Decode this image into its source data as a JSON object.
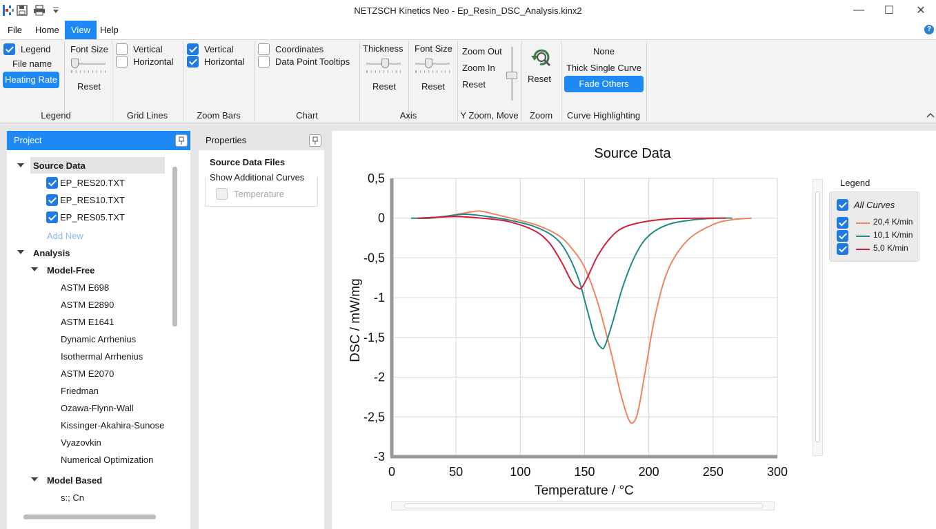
{
  "window": {
    "title": "NETZSCH Kinetics Neo - Ep_Resin_DSC_Analysis.kinx2",
    "minimize_glyph": "—",
    "maximize_glyph": "☐",
    "close_glyph": "✕"
  },
  "menu": {
    "items": [
      "File",
      "Home",
      "View",
      "Help"
    ],
    "active": "View",
    "help_glyph": "?"
  },
  "ribbon": {
    "legend_group": {
      "label": "Legend",
      "legend_checkbox": "Legend",
      "legend_checked": true,
      "file_name": "File name",
      "heating_rate": "Heating Rate",
      "font_size": "Font Size",
      "reset": "Reset"
    },
    "grid_group": {
      "label": "Grid Lines",
      "vertical": "Vertical",
      "horizontal": "Horizontal",
      "vertical_checked": false,
      "horizontal_checked": false
    },
    "zoom_bars_group": {
      "label": "Zoom Bars",
      "vertical": "Vertical",
      "horizontal": "Horizontal",
      "vertical_checked": true,
      "horizontal_checked": true
    },
    "chart_group": {
      "label": "Chart",
      "coordinates": "Coordinates",
      "tooltips": "Data Point Tooltips"
    },
    "axis_group": {
      "label": "Axis",
      "thickness": "Thickness",
      "font_size": "Font Size",
      "reset1": "Reset",
      "reset2": "Reset"
    },
    "yzoom_group": {
      "label": "Y Zoom, Move",
      "zoom_out": "Zoom Out",
      "zoom_in": "Zoom In",
      "reset": "Reset"
    },
    "zoom_group": {
      "label": "Zoom",
      "reset": "Reset"
    },
    "highlight_group": {
      "label": "Curve Highlighting",
      "none": "None",
      "thick": "Thick Single Curve",
      "fade": "Fade Others"
    }
  },
  "project": {
    "title": "Project",
    "source_data": "Source Data",
    "files": [
      {
        "name": "EP_RES20.TXT",
        "checked": true
      },
      {
        "name": "EP_RES10.TXT",
        "checked": true
      },
      {
        "name": "EP_RES05.TXT",
        "checked": true
      }
    ],
    "add_new": "Add New",
    "analysis": "Analysis",
    "model_free": "Model-Free",
    "methods": [
      "ASTM E698",
      "ASTM E2890",
      "ASTM E1641",
      "Dynamic Arrhenius",
      "Isothermal Arrhenius",
      "ASTM E2070",
      "Friedman",
      "Ozawa-Flynn-Wall",
      "Kissinger-Akahira-Sunose",
      "Vyazovkin",
      "Numerical Optimization"
    ],
    "model_based": "Model Based",
    "model_based_item": "s:; Cn"
  },
  "properties": {
    "title": "Properties",
    "section": "Source Data Files",
    "additional": "Show Additional Curves",
    "temperature": "Temperature"
  },
  "chart_legend": {
    "title": "Legend",
    "all_curves": "All Curves",
    "entries": [
      {
        "label": "20,4 K/min",
        "color": "#f0845a"
      },
      {
        "label": "10,1 K/min",
        "color": "#1e8a86"
      },
      {
        "label": "5,0 K/min",
        "color": "#d01e3c"
      }
    ]
  },
  "chart_data": {
    "type": "line",
    "title": "Source Data",
    "xlabel": "Temperature / °C",
    "ylabel": "DSC / mW/mg",
    "xlim": [
      0,
      300
    ],
    "ylim": [
      -3,
      0.5
    ],
    "x_ticks": [
      0,
      50,
      100,
      150,
      200,
      250,
      300
    ],
    "x_tick_labels": [
      "0",
      "50",
      "100",
      "150",
      "200",
      "250",
      "300"
    ],
    "y_ticks": [
      0.5,
      0,
      -0.5,
      -1,
      -1.5,
      -2,
      -2.5,
      -3
    ],
    "y_tick_labels": [
      "0,5",
      "0",
      "-0,5",
      "-1",
      "-1,5",
      "-2",
      "-2,5",
      "-3"
    ],
    "grid": true,
    "legend_position": "right",
    "series": [
      {
        "name": "20,4 K/min",
        "color": "#f0845a",
        "x": [
          20,
          40,
          55,
          68,
          80,
          100,
          115,
          130,
          140,
          150,
          160,
          170,
          178,
          184,
          188,
          192,
          198,
          205,
          215,
          230,
          250,
          265,
          280
        ],
        "y": [
          0,
          0.02,
          0.06,
          0.09,
          0.05,
          -0.03,
          -0.1,
          -0.22,
          -0.38,
          -0.62,
          -1.05,
          -1.65,
          -2.2,
          -2.52,
          -2.57,
          -2.4,
          -1.85,
          -1.22,
          -0.65,
          -0.28,
          -0.08,
          -0.02,
          0
        ]
      },
      {
        "name": "10,1 K/min",
        "color": "#1e8a86",
        "x": [
          15,
          30,
          45,
          57,
          70,
          90,
          110,
          125,
          135,
          145,
          152,
          158,
          163,
          166,
          172,
          180,
          190,
          200,
          215,
          235,
          255,
          265
        ],
        "y": [
          0,
          0.0,
          0.03,
          0.05,
          0.03,
          -0.02,
          -0.1,
          -0.22,
          -0.4,
          -0.75,
          -1.15,
          -1.5,
          -1.63,
          -1.6,
          -1.3,
          -0.85,
          -0.45,
          -0.22,
          -0.08,
          -0.02,
          0,
          0
        ]
      },
      {
        "name": "5,0 K/min",
        "color": "#d01e3c",
        "x": [
          20,
          35,
          50,
          70,
          90,
          110,
          122,
          132,
          140,
          145,
          148,
          153,
          160,
          170,
          180,
          195,
          215,
          240,
          260
        ],
        "y": [
          0,
          0.01,
          0.02,
          0.0,
          -0.04,
          -0.15,
          -0.3,
          -0.55,
          -0.8,
          -0.88,
          -0.87,
          -0.72,
          -0.48,
          -0.25,
          -0.12,
          -0.05,
          -0.01,
          0,
          0
        ]
      }
    ]
  }
}
